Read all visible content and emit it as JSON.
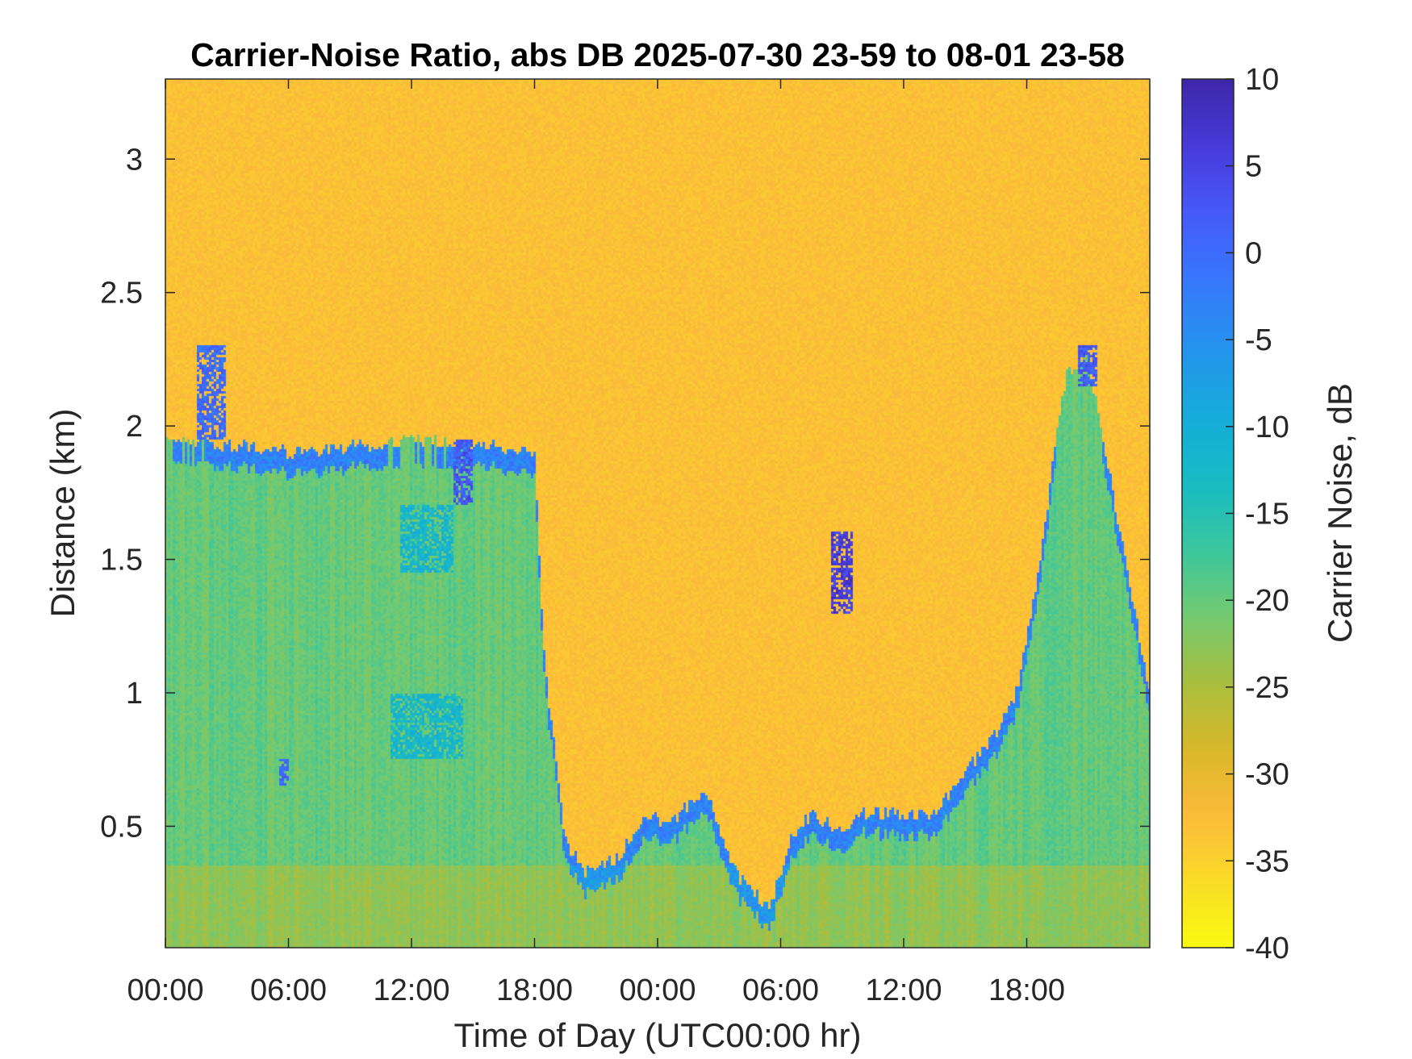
{
  "chart_data": {
    "type": "heatmap",
    "title": "Carrier-Noise Ratio, abs DB 2025-07-30 23-59 to 08-01 23-58",
    "xlabel": "Time of Day (UTC00:00 hr)",
    "ylabel": "Distance (km)",
    "x_ticks": [
      "00:00",
      "06:00",
      "12:00",
      "18:00",
      "00:00",
      "06:00",
      "12:00",
      "18:00"
    ],
    "x_tick_hours": [
      0,
      6,
      12,
      18,
      24,
      30,
      36,
      42
    ],
    "xlim_hours": [
      0,
      48
    ],
    "y_ticks": [
      0.5,
      1,
      1.5,
      2,
      2.5,
      3
    ],
    "y_tick_labels": [
      "0.5",
      "1",
      "1.5",
      "2",
      "2.5",
      "3"
    ],
    "ylim_km": [
      0.045,
      3.3
    ],
    "colorbar": {
      "label": "Carrier Noise, dB",
      "ticks": [
        10,
        5,
        0,
        -5,
        -10,
        -15,
        -20,
        -25,
        -30,
        -35,
        -40
      ],
      "tick_labels": [
        "10",
        "5",
        "0",
        "-5",
        "-10",
        "-15",
        "-20",
        "-25",
        "-30",
        "-35",
        "-40"
      ],
      "range": [
        -40,
        10
      ],
      "colormap": "parula",
      "reversed": true
    },
    "field": {
      "background_db": -33,
      "boundary_layer_db": -20,
      "layer_top_km": [
        [
          0,
          1.95
        ],
        [
          3,
          1.93
        ],
        [
          6,
          1.9
        ],
        [
          9,
          1.92
        ],
        [
          12,
          1.95
        ],
        [
          15,
          1.93
        ],
        [
          18,
          1.9
        ],
        [
          18.5,
          1.1
        ],
        [
          19.5,
          0.45
        ],
        [
          20.5,
          0.33
        ],
        [
          22,
          0.38
        ],
        [
          23.5,
          0.55
        ],
        [
          24.5,
          0.5
        ],
        [
          25.5,
          0.58
        ],
        [
          26.5,
          0.62
        ],
        [
          27,
          0.5
        ],
        [
          28,
          0.3
        ],
        [
          29.5,
          0.2
        ],
        [
          30.5,
          0.45
        ],
        [
          31.5,
          0.55
        ],
        [
          33,
          0.48
        ],
        [
          34,
          0.55
        ],
        [
          36,
          0.55
        ],
        [
          37.5,
          0.55
        ],
        [
          39,
          0.7
        ],
        [
          40.5,
          0.85
        ],
        [
          41.5,
          1.0
        ],
        [
          42.5,
          1.4
        ],
        [
          43.5,
          2.0
        ],
        [
          44,
          2.2
        ],
        [
          45,
          2.25
        ],
        [
          48,
          1.0
        ]
      ],
      "enhanced_patches": [
        {
          "t": [
            1.5,
            3
          ],
          "z": [
            1.95,
            2.3
          ],
          "db": 0
        },
        {
          "t": [
            14,
            15
          ],
          "z": [
            1.7,
            1.95
          ],
          "db": 3
        },
        {
          "t": [
            32.5,
            33.5
          ],
          "z": [
            1.3,
            1.6
          ],
          "db": 6
        },
        {
          "t": [
            44.5,
            45.5
          ],
          "z": [
            2.15,
            2.3
          ],
          "db": 2
        },
        {
          "t": [
            11.5,
            14
          ],
          "z": [
            1.45,
            1.7
          ],
          "db": -12
        },
        {
          "t": [
            11,
            14.5
          ],
          "z": [
            0.75,
            1.0
          ],
          "db": -12
        },
        {
          "t": [
            5.5,
            6
          ],
          "z": [
            0.65,
            0.75
          ],
          "db": 0
        }
      ]
    }
  }
}
